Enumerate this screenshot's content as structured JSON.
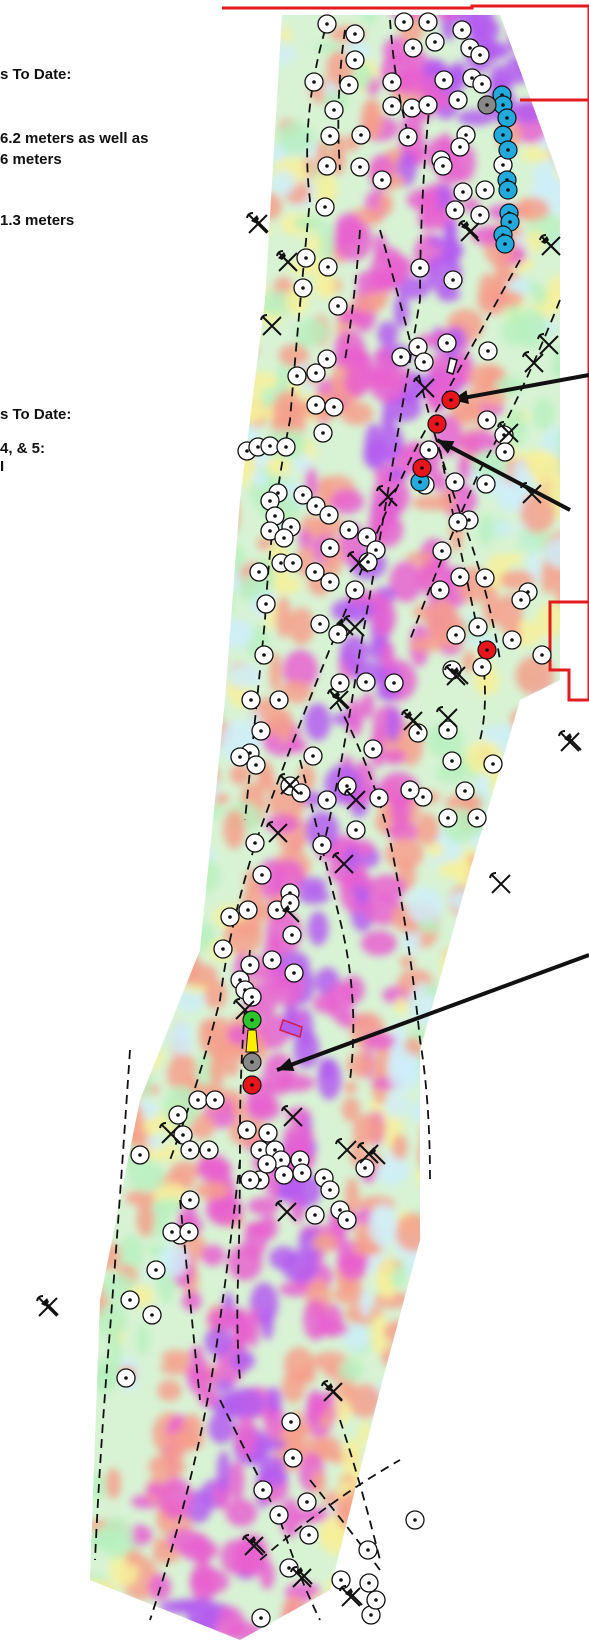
{
  "text_fragments": [
    "s To Date:",
    "6.2 meters as well as",
    "6 meters",
    "1.3 meters",
    "s To Date:",
    "4, & 5:",
    "I"
  ],
  "colors": {
    "claim_boundary": "#e41a1c",
    "magnetic_high": "#b45cf0",
    "magnetic_mid_high": "#e860d0",
    "magnetic_mid": "#f6a08c",
    "magnetic_low_mid": "#f7f09a",
    "magnetic_low": "#b8f0c0",
    "magnetic_lowest": "#cfeefa",
    "structure_line": "#111111",
    "arrow": "#111111",
    "prospect_marker": "#ffffff",
    "hole_red": "#e8141c",
    "hole_blue": "#22aadd",
    "hole_grey": "#888888",
    "hole_green": "#2ec42e",
    "hole_yellow": "#ffee00"
  },
  "legend_symbols": [
    "prospect-circle-icon",
    "mine-pick-icon",
    "drill-hole-icon"
  ]
}
